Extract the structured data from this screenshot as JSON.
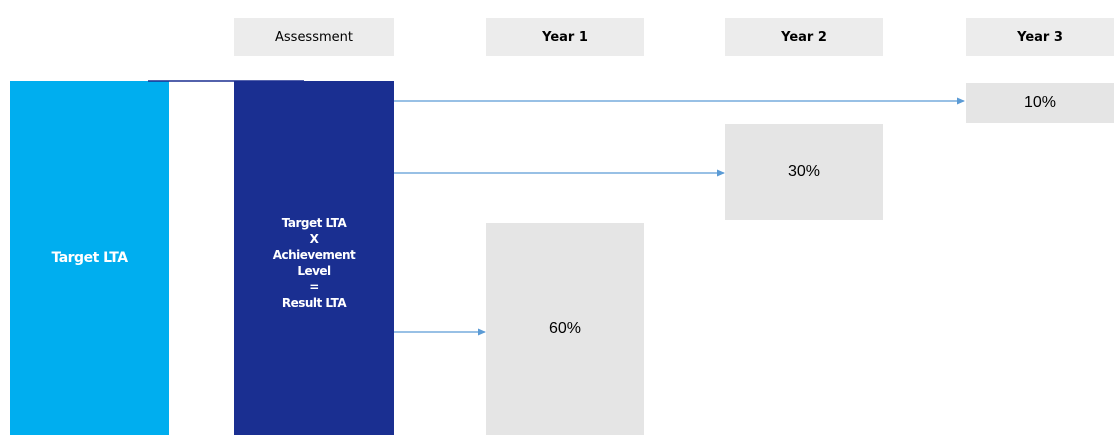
{
  "headers": {
    "assessment": "Assessment",
    "year1": "Year 1",
    "year2": "Year 2",
    "year3": "Year 3"
  },
  "target_bar": {
    "label": "Target LTA"
  },
  "assessment_bar": {
    "lines": [
      "Target LTA",
      "X",
      "Achievement",
      "Level",
      "=",
      "Result LTA"
    ]
  },
  "results": {
    "year1": "60%",
    "year2": "30%",
    "year3": "10%"
  },
  "colors": {
    "target_bar": "#00aeef",
    "assessment_bar": "#1a2f91",
    "header_fill": "#ececec",
    "result_fill": "#e5e5e5",
    "arrow": "#5b9bd5"
  }
}
